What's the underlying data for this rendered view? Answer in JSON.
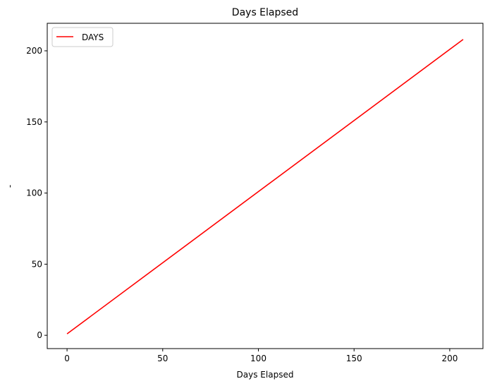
{
  "chart_data": {
    "type": "line",
    "title": "Days Elapsed",
    "xlabel": "Days Elapsed",
    "ylabel": "-",
    "xlim": [
      -10.35,
      217.35
    ],
    "ylim": [
      -9.35,
      219.35
    ],
    "xticks": [
      0,
      50,
      100,
      150,
      200
    ],
    "yticks": [
      0,
      50,
      100,
      150,
      200
    ],
    "grid": false,
    "legend_position": "top-left",
    "series": [
      {
        "name": "DAYS",
        "color": "#ff0000",
        "x": [
          0,
          207
        ],
        "y": [
          1,
          208
        ]
      }
    ]
  }
}
